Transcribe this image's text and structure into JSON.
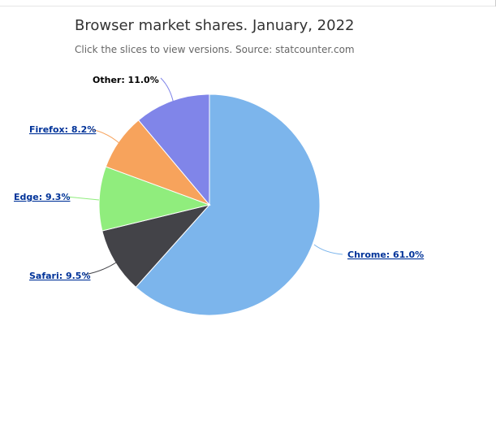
{
  "chart_data": {
    "type": "pie",
    "title": "Browser market shares. January, 2022",
    "subtitle": "Click the slices to view versions. Source: statcounter.com",
    "slices": [
      {
        "name": "Chrome",
        "value": 61.0,
        "color": "#7cb5ec",
        "label": "Chrome: 61.0%",
        "link": true
      },
      {
        "name": "Safari",
        "value": 9.5,
        "color": "#434348",
        "label": "Safari: 9.5%",
        "link": true
      },
      {
        "name": "Edge",
        "value": 9.3,
        "color": "#90ed7d",
        "label": "Edge: 9.3%",
        "link": true
      },
      {
        "name": "Firefox",
        "value": 8.2,
        "color": "#f7a35c",
        "label": "Firefox: 8.2%",
        "link": true
      },
      {
        "name": "Other",
        "value": 11.0,
        "color": "#8085e9",
        "label": "Other: 11.0%",
        "link": false
      }
    ]
  }
}
